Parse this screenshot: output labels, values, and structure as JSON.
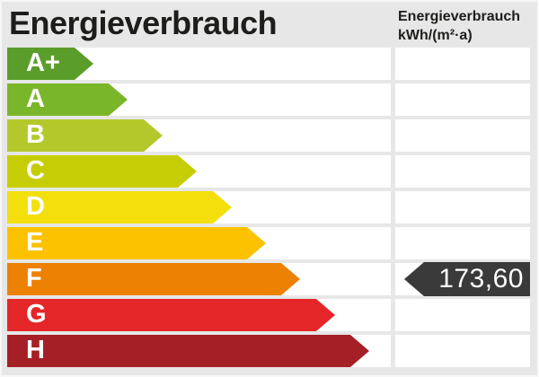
{
  "header": {
    "title": "Energieverbrauch",
    "unit_title": "Energieverbrauch",
    "unit": "kWh/(m²·a)"
  },
  "scale": {
    "rows": [
      {
        "label": "A+",
        "color": "#5b9d2a",
        "arrow_width": 96
      },
      {
        "label": "A",
        "color": "#7ab629",
        "arrow_width": 134
      },
      {
        "label": "B",
        "color": "#b3c92b",
        "arrow_width": 173
      },
      {
        "label": "C",
        "color": "#c7cd05",
        "arrow_width": 211
      },
      {
        "label": "D",
        "color": "#f2df0c",
        "arrow_width": 250
      },
      {
        "label": "E",
        "color": "#fcc200",
        "arrow_width": 288
      },
      {
        "label": "F",
        "color": "#ec8104",
        "arrow_width": 326
      },
      {
        "label": "G",
        "color": "#e42629",
        "arrow_width": 365
      },
      {
        "label": "H",
        "color": "#a52026",
        "arrow_width": 403
      }
    ]
  },
  "value_marker": {
    "row": "F",
    "text": "173,60",
    "color": "#3a3a3a",
    "text_color": "#ffffff"
  },
  "chart_data": {
    "type": "bar",
    "title": "Energieverbrauch",
    "ylabel": "kWh/(m²·a)",
    "categories": [
      "A+",
      "A",
      "B",
      "C",
      "D",
      "E",
      "F",
      "G",
      "H"
    ],
    "values": [
      96,
      134,
      173,
      211,
      250,
      288,
      326,
      365,
      403
    ],
    "colors": [
      "#5b9d2a",
      "#7ab629",
      "#b3c92b",
      "#c7cd05",
      "#f2df0c",
      "#fcc200",
      "#ec8104",
      "#e42629",
      "#a52026"
    ],
    "marked_value": 173.6,
    "marked_value_label": "173,60",
    "marked_category": "F",
    "orientation": "horizontal",
    "legend": "off",
    "grid": "off"
  }
}
